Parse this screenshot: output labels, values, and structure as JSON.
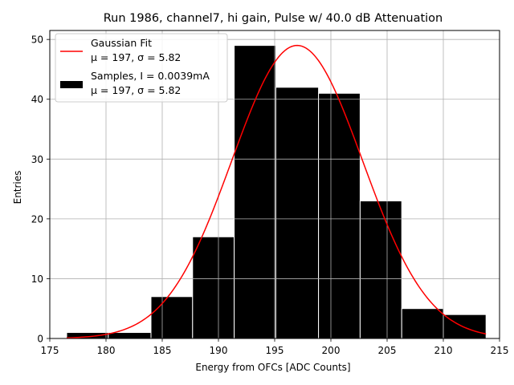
{
  "chart_data": {
    "type": "bar",
    "title": "Run 1986, channel7, hi gain, Pulse w/ 40.0 dB Attenuation",
    "xlabel": "Energy from OFCs [ADC Counts]",
    "ylabel": "Entries",
    "xlim": [
      175,
      215
    ],
    "ylim": [
      0,
      51.5
    ],
    "xticks": [
      175,
      180,
      185,
      190,
      195,
      200,
      205,
      210,
      215
    ],
    "yticks": [
      0,
      10,
      20,
      30,
      40,
      50
    ],
    "grid": true,
    "bins": [
      {
        "x0": 176.5,
        "x1": 180.2,
        "count": 1
      },
      {
        "x0": 180.2,
        "x1": 184.0,
        "count": 1
      },
      {
        "x0": 184.0,
        "x1": 187.7,
        "count": 7
      },
      {
        "x0": 187.7,
        "x1": 191.4,
        "count": 17
      },
      {
        "x0": 191.4,
        "x1": 195.1,
        "count": 49
      },
      {
        "x0": 195.1,
        "x1": 198.9,
        "count": 42
      },
      {
        "x0": 198.9,
        "x1": 202.6,
        "count": 41
      },
      {
        "x0": 202.6,
        "x1": 206.3,
        "count": 23
      },
      {
        "x0": 206.3,
        "x1": 210.0,
        "count": 5
      },
      {
        "x0": 210.0,
        "x1": 213.8,
        "count": 4
      }
    ],
    "fit": {
      "name": "Gaussian Fit",
      "mu": 197,
      "sigma": 5.82,
      "amplitude": 49,
      "range": [
        176.5,
        213.8
      ],
      "color": "#ff0000"
    },
    "bar_color": "#000000",
    "bar_edge_color": "#ffffff",
    "legend": {
      "location": "top-left",
      "entries": [
        {
          "line1": "Gaussian Fit",
          "line2": "μ = 197, σ = 5.82"
        },
        {
          "line1": "Samples, I = 0.0039mA",
          "line2": "μ = 197, σ = 5.82"
        }
      ]
    }
  }
}
